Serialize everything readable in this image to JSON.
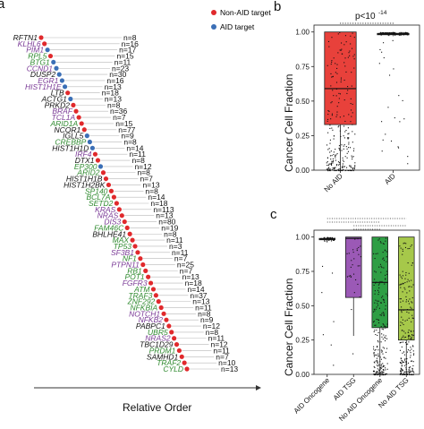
{
  "colors": {
    "non_aid": "#e0292c",
    "aid": "#3b6fb6",
    "purple": "#7a3a96",
    "green": "#2f8a2f",
    "black": "#111111",
    "box_noaid": "#e8413b",
    "box_aid_onc": "#ffffff",
    "box_aid_tsg": "#9b59b6",
    "box_noaid_onc": "#2e9e44",
    "box_noaid_tsg": "#a6c84a"
  },
  "panels": {
    "a": "a",
    "b": "b",
    "c": "c"
  },
  "chart_data": [
    {
      "type": "scatter",
      "panel": "a",
      "xlabel": "Relative Order",
      "legend": {
        "items": [
          "Non-AID target",
          "AID target"
        ],
        "placement": "top-right"
      },
      "genes": [
        {
          "name": "RFTN1",
          "n": "n=8",
          "target": "non_aid",
          "style": "black"
        },
        {
          "name": "KLHL6",
          "n": "n=16",
          "target": "non_aid",
          "style": "purple"
        },
        {
          "name": "PIM1",
          "n": "n=17",
          "target": "aid",
          "style": "purple"
        },
        {
          "name": "RPL5",
          "n": "n=15",
          "target": "non_aid",
          "style": "green"
        },
        {
          "name": "BTG1",
          "n": "n=11",
          "target": "aid",
          "style": "green"
        },
        {
          "name": "CCND1",
          "n": "n=23",
          "target": "aid",
          "style": "purple"
        },
        {
          "name": "DUSP2",
          "n": "n=30",
          "target": "aid",
          "style": "black"
        },
        {
          "name": "EGR1",
          "n": "n=16",
          "target": "aid",
          "style": "purple"
        },
        {
          "name": "HIST1H1E",
          "n": "n=13",
          "target": "aid",
          "style": "purple"
        },
        {
          "name": "LTB",
          "n": "n=18",
          "target": "non_aid",
          "style": "black"
        },
        {
          "name": "ACTG1",
          "n": "n=13",
          "target": "aid",
          "style": "black"
        },
        {
          "name": "PRKD2",
          "n": "n=8",
          "target": "non_aid",
          "style": "black"
        },
        {
          "name": "BRAF",
          "n": "n=36",
          "target": "non_aid",
          "style": "purple"
        },
        {
          "name": "TCL1A",
          "n": "n=7",
          "target": "non_aid",
          "style": "purple"
        },
        {
          "name": "ARID1A",
          "n": "n=15",
          "target": "non_aid",
          "style": "green"
        },
        {
          "name": "NCOR1",
          "n": "n=77",
          "target": "non_aid",
          "style": "black"
        },
        {
          "name": "IGLL5",
          "n": "n=9",
          "target": "aid",
          "style": "black"
        },
        {
          "name": "CREBBP",
          "n": "n=8",
          "target": "aid",
          "style": "green"
        },
        {
          "name": "HIST1H1D",
          "n": "n=14",
          "target": "aid",
          "style": "black"
        },
        {
          "name": "IRF4",
          "n": "n=11",
          "target": "non_aid",
          "style": "purple"
        },
        {
          "name": "DTX1",
          "n": "n=8",
          "target": "non_aid",
          "style": "black"
        },
        {
          "name": "EP300",
          "n": "n=12",
          "target": "aid",
          "style": "green"
        },
        {
          "name": "ARID2",
          "n": "n=8",
          "target": "non_aid",
          "style": "green"
        },
        {
          "name": "HIST1H1B",
          "n": "n=7",
          "target": "non_aid",
          "style": "black"
        },
        {
          "name": "HIST1H2BK",
          "n": "n=13",
          "target": "non_aid",
          "style": "black"
        },
        {
          "name": "SP140",
          "n": "n=8",
          "target": "non_aid",
          "style": "green"
        },
        {
          "name": "BCL7A",
          "n": "n=14",
          "target": "non_aid",
          "style": "green"
        },
        {
          "name": "SETD2",
          "n": "n=18",
          "target": "non_aid",
          "style": "green"
        },
        {
          "name": "KRAS",
          "n": "n=113",
          "target": "non_aid",
          "style": "purple"
        },
        {
          "name": "NRAS",
          "n": "n=13",
          "target": "non_aid",
          "style": "purple"
        },
        {
          "name": "DIS3",
          "n": "n=80",
          "target": "non_aid",
          "style": "purple"
        },
        {
          "name": "FAM46C",
          "n": "n=19",
          "target": "non_aid",
          "style": "green"
        },
        {
          "name": "BHLHE41",
          "n": "n=8",
          "target": "non_aid",
          "style": "black"
        },
        {
          "name": "MAX",
          "n": "n=11",
          "target": "non_aid",
          "style": "green"
        },
        {
          "name": "TP53",
          "n": "n=3",
          "target": "non_aid",
          "style": "green"
        },
        {
          "name": "SF3B1",
          "n": "n=11",
          "target": "non_aid",
          "style": "purple"
        },
        {
          "name": "NF1",
          "n": "n=7",
          "target": "non_aid",
          "style": "green"
        },
        {
          "name": "PTPN11",
          "n": "n=25",
          "target": "non_aid",
          "style": "purple"
        },
        {
          "name": "RB1",
          "n": "n=7",
          "target": "non_aid",
          "style": "green"
        },
        {
          "name": "POT1",
          "n": "n=13",
          "target": "non_aid",
          "style": "green"
        },
        {
          "name": "FGFR3",
          "n": "n=18",
          "target": "non_aid",
          "style": "purple"
        },
        {
          "name": "ATM",
          "n": "n=14",
          "target": "non_aid",
          "style": "green"
        },
        {
          "name": "TRAF3",
          "n": "n=37",
          "target": "non_aid",
          "style": "green"
        },
        {
          "name": "ZNF292",
          "n": "n=13",
          "target": "non_aid",
          "style": "green"
        },
        {
          "name": "NFKBIA",
          "n": "n=11",
          "target": "non_aid",
          "style": "green"
        },
        {
          "name": "NOTCH1",
          "n": "n=8",
          "target": "non_aid",
          "style": "purple"
        },
        {
          "name": "NFKB2",
          "n": "n=9",
          "target": "non_aid",
          "style": "purple"
        },
        {
          "name": "PABPC1",
          "n": "n=12",
          "target": "non_aid",
          "style": "black"
        },
        {
          "name": "UBR5",
          "n": "n=8",
          "target": "non_aid",
          "style": "green"
        },
        {
          "name": "NRAS2",
          "n": "n=11",
          "target": "non_aid",
          "style": "purple"
        },
        {
          "name": "TBC1D29",
          "n": "n=12",
          "target": "non_aid",
          "style": "black"
        },
        {
          "name": "PRDM1",
          "n": "n=11",
          "target": "non_aid",
          "style": "green"
        },
        {
          "name": "SAMHD1",
          "n": "n=7",
          "target": "non_aid",
          "style": "black"
        },
        {
          "name": "TRAF2",
          "n": "n=10",
          "target": "non_aid",
          "style": "green"
        },
        {
          "name": "CYLD",
          "n": "n=13",
          "target": "non_aid",
          "style": "green"
        }
      ]
    },
    {
      "type": "box",
      "panel": "b",
      "ylabel": "Cancer Cell Fraction",
      "ylim": [
        0,
        1.05
      ],
      "yticks": [
        "0.00",
        "0.25",
        "0.50",
        "0.75",
        "1.00"
      ],
      "annotation": "p<10",
      "annotation_exp": "-14",
      "groups": [
        {
          "name": "No AID",
          "q1": 0.33,
          "median": 0.59,
          "q3": 1.0,
          "whisker_low": 0.0,
          "whisker_high": 1.0,
          "color": "#e8413b"
        },
        {
          "name": "AID",
          "q1": 0.98,
          "median": 0.985,
          "q3": 0.99,
          "whisker_low": 0.97,
          "whisker_high": 1.0,
          "color": "#ffffff"
        }
      ]
    },
    {
      "type": "box",
      "panel": "c",
      "ylabel": "Cancer Cell Fraction",
      "ylim": [
        0,
        1.05
      ],
      "yticks": [
        "0.00",
        "0.25",
        "0.50",
        "0.75",
        "1.00"
      ],
      "groups": [
        {
          "name": "AID Oncogene",
          "q1": 0.98,
          "median": 0.985,
          "q3": 0.99,
          "whisker_low": 0.96,
          "whisker_high": 1.0,
          "color": "#ffffff"
        },
        {
          "name": "AID TSG",
          "q1": 0.56,
          "median": 0.99,
          "q3": 1.0,
          "whisker_low": 0.28,
          "whisker_high": 1.0,
          "color": "#9b59b6"
        },
        {
          "name": "No AID Oncogene",
          "q1": 0.34,
          "median": 0.67,
          "q3": 1.0,
          "whisker_low": 0.0,
          "whisker_high": 1.0,
          "color": "#2e9e44"
        },
        {
          "name": "No AID TSG",
          "q1": 0.25,
          "median": 0.47,
          "q3": 1.0,
          "whisker_low": 0.0,
          "whisker_high": 1.0,
          "color": "#a6c84a"
        }
      ]
    }
  ]
}
